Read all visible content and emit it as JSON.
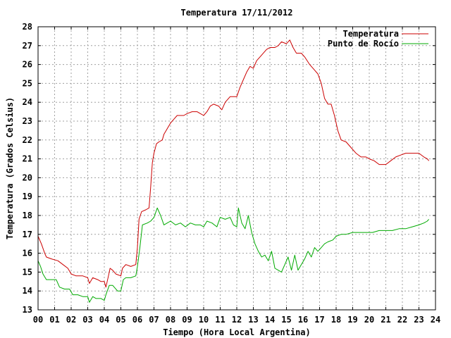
{
  "chart_data": {
    "type": "line",
    "title": "Temperatura 17/11/2012",
    "xlabel": "Tiempo (Hora Local Argentina)",
    "ylabel": "Temperatura (Grados Celsius)",
    "xlim": [
      0,
      24
    ],
    "ylim": [
      13,
      28
    ],
    "xticks": [
      "00",
      "01",
      "02",
      "03",
      "04",
      "05",
      "06",
      "07",
      "08",
      "09",
      "10",
      "11",
      "12",
      "13",
      "14",
      "15",
      "16",
      "17",
      "18",
      "19",
      "20",
      "21",
      "22",
      "23",
      "24"
    ],
    "yticks": [
      13,
      14,
      15,
      16,
      17,
      18,
      19,
      20,
      21,
      22,
      23,
      24,
      25,
      26,
      27,
      28
    ],
    "grid": true,
    "legend": "top-right",
    "series": [
      {
        "name": "Temperatura",
        "color": "#cc0000",
        "points": [
          [
            0.0,
            16.9
          ],
          [
            0.2,
            16.5
          ],
          [
            0.4,
            16.0
          ],
          [
            0.5,
            15.8
          ],
          [
            0.8,
            15.7
          ],
          [
            1.2,
            15.6
          ],
          [
            1.5,
            15.4
          ],
          [
            1.8,
            15.2
          ],
          [
            2.0,
            14.9
          ],
          [
            2.3,
            14.8
          ],
          [
            2.7,
            14.8
          ],
          [
            3.0,
            14.7
          ],
          [
            3.1,
            14.4
          ],
          [
            3.3,
            14.7
          ],
          [
            3.6,
            14.6
          ],
          [
            3.8,
            14.5
          ],
          [
            4.0,
            14.5
          ],
          [
            4.1,
            14.2
          ],
          [
            4.25,
            14.8
          ],
          [
            4.35,
            15.2
          ],
          [
            4.5,
            15.1
          ],
          [
            4.7,
            14.9
          ],
          [
            5.0,
            14.8
          ],
          [
            5.1,
            15.2
          ],
          [
            5.3,
            15.4
          ],
          [
            5.6,
            15.3
          ],
          [
            5.9,
            15.4
          ],
          [
            6.0,
            16.3
          ],
          [
            6.1,
            17.8
          ],
          [
            6.25,
            18.2
          ],
          [
            6.5,
            18.3
          ],
          [
            6.7,
            18.4
          ],
          [
            6.8,
            19.5
          ],
          [
            6.9,
            20.8
          ],
          [
            7.0,
            21.3
          ],
          [
            7.15,
            21.8
          ],
          [
            7.3,
            21.9
          ],
          [
            7.5,
            22.0
          ],
          [
            7.6,
            22.3
          ],
          [
            7.8,
            22.6
          ],
          [
            8.0,
            22.9
          ],
          [
            8.2,
            23.1
          ],
          [
            8.4,
            23.3
          ],
          [
            8.8,
            23.3
          ],
          [
            9.0,
            23.4
          ],
          [
            9.3,
            23.5
          ],
          [
            9.6,
            23.5
          ],
          [
            9.8,
            23.4
          ],
          [
            10.0,
            23.3
          ],
          [
            10.2,
            23.5
          ],
          [
            10.4,
            23.8
          ],
          [
            10.6,
            23.9
          ],
          [
            10.9,
            23.8
          ],
          [
            11.1,
            23.6
          ],
          [
            11.3,
            24.0
          ],
          [
            11.6,
            24.3
          ],
          [
            11.8,
            24.3
          ],
          [
            12.0,
            24.3
          ],
          [
            12.2,
            24.8
          ],
          [
            12.4,
            25.2
          ],
          [
            12.6,
            25.6
          ],
          [
            12.8,
            25.9
          ],
          [
            13.0,
            25.8
          ],
          [
            13.2,
            26.2
          ],
          [
            13.5,
            26.5
          ],
          [
            13.8,
            26.8
          ],
          [
            14.0,
            26.9
          ],
          [
            14.3,
            26.9
          ],
          [
            14.5,
            27.0
          ],
          [
            14.7,
            27.2
          ],
          [
            15.0,
            27.1
          ],
          [
            15.2,
            27.3
          ],
          [
            15.4,
            26.9
          ],
          [
            15.6,
            26.6
          ],
          [
            15.9,
            26.6
          ],
          [
            16.1,
            26.4
          ],
          [
            16.4,
            26.0
          ],
          [
            16.7,
            25.7
          ],
          [
            16.9,
            25.5
          ],
          [
            17.1,
            25.0
          ],
          [
            17.3,
            24.2
          ],
          [
            17.5,
            23.9
          ],
          [
            17.7,
            23.9
          ],
          [
            17.9,
            23.3
          ],
          [
            18.1,
            22.5
          ],
          [
            18.3,
            22.0
          ],
          [
            18.6,
            21.9
          ],
          [
            18.9,
            21.6
          ],
          [
            19.2,
            21.3
          ],
          [
            19.5,
            21.1
          ],
          [
            19.8,
            21.1
          ],
          [
            20.0,
            21.0
          ],
          [
            20.3,
            20.9
          ],
          [
            20.6,
            20.7
          ],
          [
            21.0,
            20.7
          ],
          [
            21.3,
            20.9
          ],
          [
            21.6,
            21.1
          ],
          [
            21.9,
            21.2
          ],
          [
            22.2,
            21.3
          ],
          [
            22.6,
            21.3
          ],
          [
            23.0,
            21.3
          ],
          [
            23.3,
            21.1
          ],
          [
            23.5,
            21.0
          ],
          [
            23.6,
            20.9
          ]
        ]
      },
      {
        "name": "Punto de Rocío",
        "color": "#00aa00",
        "points": [
          [
            0.0,
            15.6
          ],
          [
            0.15,
            15.3
          ],
          [
            0.3,
            14.9
          ],
          [
            0.5,
            14.6
          ],
          [
            0.8,
            14.6
          ],
          [
            1.1,
            14.6
          ],
          [
            1.3,
            14.2
          ],
          [
            1.6,
            14.1
          ],
          [
            1.9,
            14.1
          ],
          [
            2.1,
            13.8
          ],
          [
            2.4,
            13.8
          ],
          [
            2.7,
            13.7
          ],
          [
            3.0,
            13.7
          ],
          [
            3.1,
            13.4
          ],
          [
            3.3,
            13.7
          ],
          [
            3.5,
            13.6
          ],
          [
            3.8,
            13.6
          ],
          [
            4.0,
            13.5
          ],
          [
            4.1,
            13.8
          ],
          [
            4.3,
            14.3
          ],
          [
            4.5,
            14.3
          ],
          [
            4.8,
            14.0
          ],
          [
            5.0,
            14.0
          ],
          [
            5.15,
            14.6
          ],
          [
            5.3,
            14.7
          ],
          [
            5.6,
            14.7
          ],
          [
            5.9,
            14.8
          ],
          [
            6.0,
            15.3
          ],
          [
            6.15,
            16.3
          ],
          [
            6.3,
            17.5
          ],
          [
            6.6,
            17.6
          ],
          [
            6.8,
            17.7
          ],
          [
            7.0,
            17.9
          ],
          [
            7.2,
            18.4
          ],
          [
            7.4,
            18.0
          ],
          [
            7.6,
            17.5
          ],
          [
            7.8,
            17.6
          ],
          [
            8.0,
            17.7
          ],
          [
            8.3,
            17.5
          ],
          [
            8.6,
            17.6
          ],
          [
            8.9,
            17.4
          ],
          [
            9.2,
            17.6
          ],
          [
            9.5,
            17.5
          ],
          [
            9.8,
            17.5
          ],
          [
            10.0,
            17.4
          ],
          [
            10.2,
            17.7
          ],
          [
            10.5,
            17.6
          ],
          [
            10.8,
            17.4
          ],
          [
            11.0,
            17.9
          ],
          [
            11.3,
            17.8
          ],
          [
            11.6,
            17.9
          ],
          [
            11.8,
            17.5
          ],
          [
            12.0,
            17.4
          ],
          [
            12.1,
            18.4
          ],
          [
            12.3,
            17.6
          ],
          [
            12.5,
            17.3
          ],
          [
            12.7,
            18.0
          ],
          [
            12.9,
            17.1
          ],
          [
            13.1,
            16.5
          ],
          [
            13.3,
            16.1
          ],
          [
            13.5,
            15.8
          ],
          [
            13.7,
            15.9
          ],
          [
            13.9,
            15.6
          ],
          [
            14.1,
            16.1
          ],
          [
            14.3,
            15.2
          ],
          [
            14.5,
            15.1
          ],
          [
            14.7,
            15.0
          ],
          [
            14.9,
            15.4
          ],
          [
            15.1,
            15.8
          ],
          [
            15.3,
            15.1
          ],
          [
            15.5,
            15.9
          ],
          [
            15.7,
            15.1
          ],
          [
            15.9,
            15.4
          ],
          [
            16.1,
            15.7
          ],
          [
            16.3,
            16.1
          ],
          [
            16.5,
            15.8
          ],
          [
            16.7,
            16.3
          ],
          [
            16.9,
            16.1
          ],
          [
            17.1,
            16.3
          ],
          [
            17.3,
            16.5
          ],
          [
            17.5,
            16.6
          ],
          [
            17.8,
            16.7
          ],
          [
            18.0,
            16.9
          ],
          [
            18.3,
            17.0
          ],
          [
            18.6,
            17.0
          ],
          [
            19.0,
            17.1
          ],
          [
            19.4,
            17.1
          ],
          [
            19.8,
            17.1
          ],
          [
            20.2,
            17.1
          ],
          [
            20.6,
            17.2
          ],
          [
            21.0,
            17.2
          ],
          [
            21.4,
            17.2
          ],
          [
            21.8,
            17.3
          ],
          [
            22.2,
            17.3
          ],
          [
            22.6,
            17.4
          ],
          [
            23.0,
            17.5
          ],
          [
            23.3,
            17.6
          ],
          [
            23.5,
            17.7
          ],
          [
            23.6,
            17.8
          ]
        ]
      }
    ]
  }
}
